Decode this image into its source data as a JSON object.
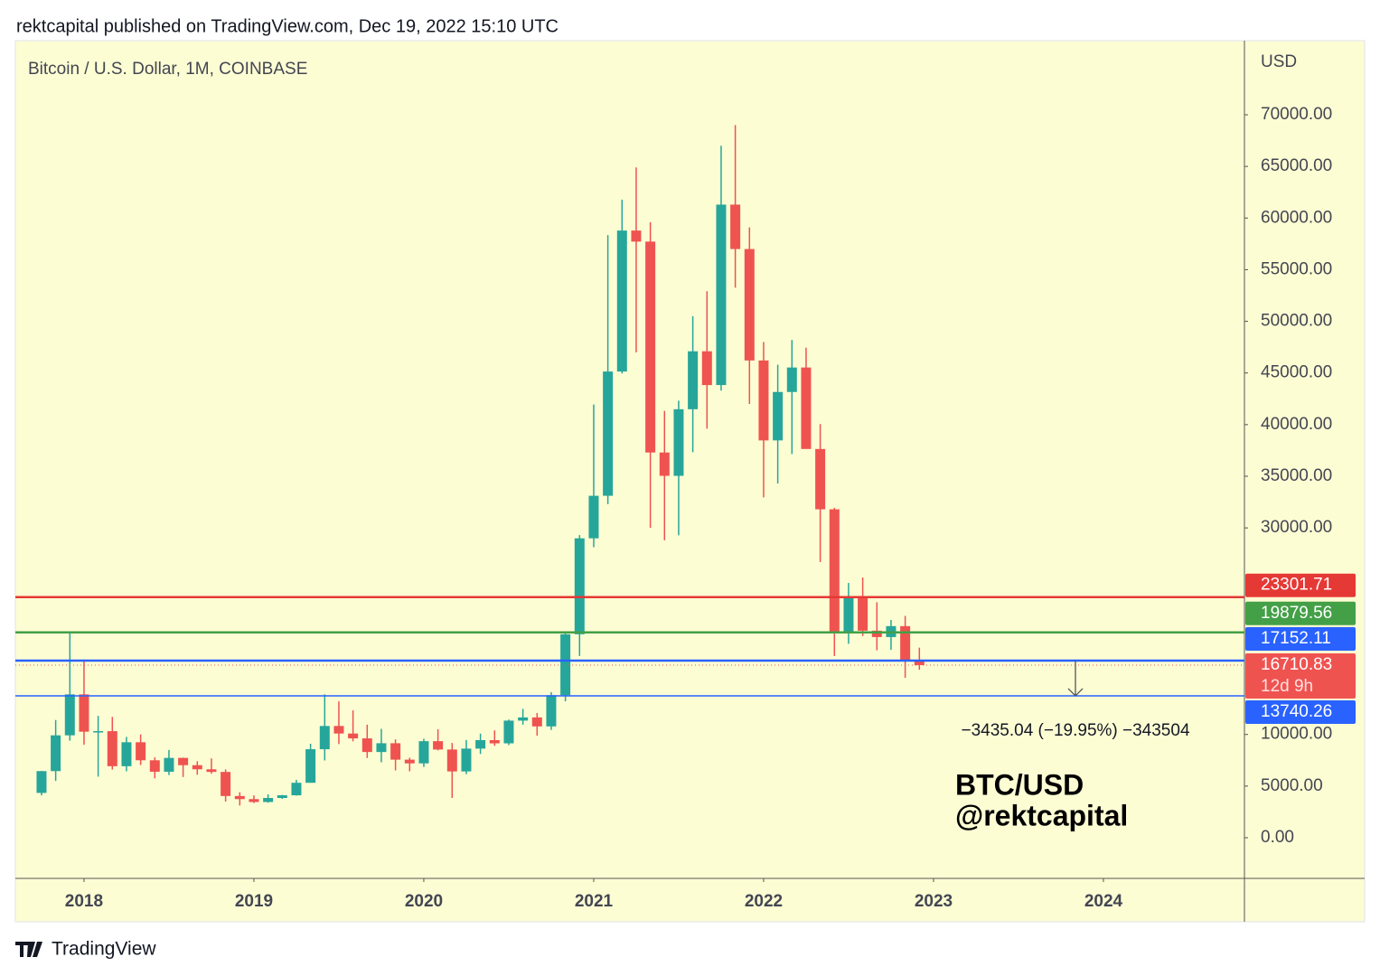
{
  "header": {
    "published": "rektcapital published on TradingView.com, Dec 19, 2022 15:10 UTC"
  },
  "footer": {
    "brand": "TradingView"
  },
  "chart_data": {
    "type": "candlestick",
    "title": "Bitcoin / U.S. Dollar, 1M, COINBASE",
    "y_axis_label": "USD",
    "up_color": "#26a69a",
    "down_color": "#ef5350",
    "x": [
      2017.75,
      2017.8333,
      2017.9167,
      2018,
      2018.0833,
      2018.1667,
      2018.25,
      2018.3333,
      2018.4167,
      2018.5,
      2018.5833,
      2018.6667,
      2018.75,
      2018.8333,
      2018.9167,
      2019,
      2019.0833,
      2019.1667,
      2019.25,
      2019.3333,
      2019.4167,
      2019.5,
      2019.5833,
      2019.6667,
      2019.75,
      2019.8333,
      2019.9167,
      2020,
      2020.0833,
      2020.1667,
      2020.25,
      2020.3333,
      2020.4167,
      2020.5,
      2020.5833,
      2020.6667,
      2020.75,
      2020.8333,
      2020.9167,
      2021,
      2021.0833,
      2021.1667,
      2021.25,
      2021.3333,
      2021.4167,
      2021.5,
      2021.5833,
      2021.6667,
      2021.75,
      2021.8333,
      2021.9167,
      2022,
      2022.0833,
      2022.1667,
      2022.25,
      2022.3333,
      2022.4167,
      2022.5,
      2022.5833,
      2022.6667,
      2022.75,
      2022.8333,
      2022.9167
    ],
    "open": [
      4338,
      6451,
      9916,
      13880,
      10265,
      10320,
      6926,
      9245,
      7500,
      6391,
      7730,
      7025,
      6626,
      6370,
      4040,
      3740,
      3460,
      3850,
      4110,
      5320,
      8570,
      10820,
      10090,
      9620,
      8300,
      9150,
      7560,
      7200,
      9350,
      8540,
      6420,
      8630,
      9450,
      9140,
      11340,
      11650,
      10780,
      13800,
      19700,
      28990,
      33110,
      45140,
      58790,
      57720,
      37300,
      35040,
      41490,
      47100,
      43830,
      61300,
      57000,
      46210,
      38470,
      43160,
      45530,
      37640,
      31800,
      19930,
      23300,
      20050,
      19430,
      20490,
      17170
    ],
    "high": [
      6470,
      11400,
      19891,
      17252,
      11800,
      11700,
      9760,
      10000,
      7780,
      8500,
      7750,
      7410,
      7680,
      6620,
      4400,
      4100,
      4200,
      4140,
      5600,
      9100,
      13880,
      13200,
      12330,
      10950,
      10540,
      9520,
      7750,
      9580,
      10500,
      9180,
      9470,
      10080,
      10390,
      11440,
      12480,
      12080,
      14100,
      19900,
      29300,
      41950,
      58350,
      61790,
      64900,
      59600,
      41330,
      42320,
      50500,
      52920,
      67000,
      69000,
      59100,
      47990,
      45800,
      48200,
      47450,
      40050,
      31950,
      24670,
      25200,
      22800,
      21090,
      21480,
      18400
    ],
    "low": [
      4100,
      5500,
      9400,
      9000,
      5920,
      6600,
      6430,
      7040,
      5750,
      6070,
      5880,
      6100,
      6200,
      3500,
      3120,
      3360,
      3390,
      3760,
      4080,
      5320,
      7480,
      9070,
      9330,
      7720,
      7300,
      6520,
      6430,
      6850,
      8460,
      3850,
      6150,
      8110,
      8900,
      8970,
      10950,
      9880,
      10440,
      13210,
      17600,
      28130,
      32300,
      44950,
      47000,
      30000,
      28800,
      29280,
      37330,
      39600,
      43290,
      53250,
      42000,
      32950,
      34300,
      37150,
      37700,
      26700,
      17600,
      18780,
      19530,
      18150,
      18190,
      15480,
      16260
    ],
    "close": [
      6451,
      9916,
      13880,
      10265,
      10320,
      6926,
      9245,
      7500,
      6391,
      7730,
      7025,
      6626,
      6370,
      4040,
      3740,
      3460,
      3850,
      4110,
      5320,
      8570,
      10820,
      10090,
      9620,
      8300,
      9150,
      7560,
      7200,
      9350,
      8540,
      6420,
      8630,
      9450,
      9140,
      11340,
      11650,
      10780,
      13800,
      19700,
      28990,
      33110,
      45140,
      58790,
      57720,
      37300,
      35040,
      41490,
      47100,
      43830,
      61300,
      57000,
      46210,
      38470,
      43160,
      45530,
      37640,
      31800,
      19930,
      23300,
      20050,
      19430,
      20490,
      17170,
      16710.83
    ],
    "xlim": [
      2017.596,
      2024.83
    ],
    "xticks": [
      2018,
      2019,
      2020,
      2021,
      2022,
      2023,
      2024
    ],
    "ylim": [
      -3937.5,
      77175
    ],
    "yticks": [
      {
        "value": 0,
        "label": "0.00"
      },
      {
        "value": 5000,
        "label": "5000.00"
      },
      {
        "value": 10000,
        "label": "10000.00"
      },
      {
        "value": 30000,
        "label": "30000.00"
      },
      {
        "value": 35000,
        "label": "35000.00"
      },
      {
        "value": 40000,
        "label": "40000.00"
      },
      {
        "value": 45000,
        "label": "45000.00"
      },
      {
        "value": 50000,
        "label": "50000.00"
      },
      {
        "value": 55000,
        "label": "55000.00"
      },
      {
        "value": 60000,
        "label": "60000.00"
      },
      {
        "value": 65000,
        "label": "65000.00"
      },
      {
        "value": 70000,
        "label": "70000.00"
      }
    ],
    "levels": [
      {
        "value": 23301.71,
        "color": "#e53935"
      },
      {
        "value": 19879.56,
        "color": "#43a047"
      },
      {
        "value": 17152.11,
        "color": "#2962ff"
      },
      {
        "value": 13740.26,
        "color": "#2962ff"
      }
    ],
    "last_price": 16710.83,
    "countdown": "12d 9h",
    "measure_label": "−3435.04 (−19.95%) −343504",
    "watermark": [
      "BTC/USD",
      "@rektcapital"
    ]
  }
}
